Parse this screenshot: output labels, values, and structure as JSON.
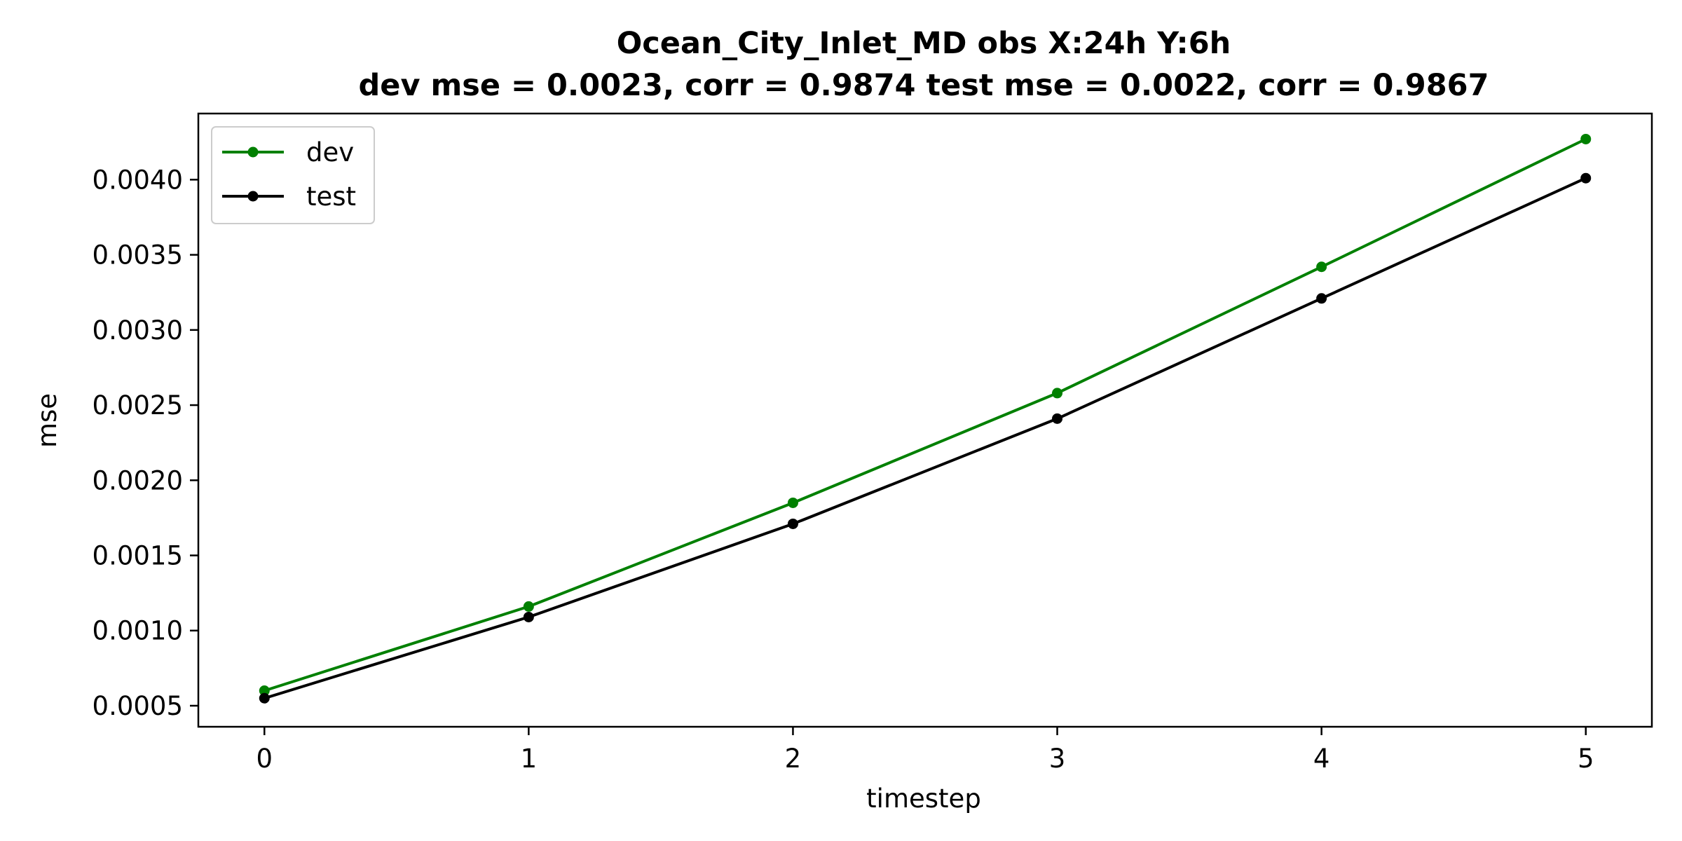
{
  "chart_data": {
    "type": "line",
    "title": "Ocean_City_Inlet_MD   obs   X:24h   Y:6h",
    "subtitle": "dev mse = 0.0023, corr = 0.9874   test mse = 0.0022, corr = 0.9867",
    "xlabel": "timestep",
    "ylabel": "mse",
    "x": [
      0,
      1,
      2,
      3,
      4,
      5
    ],
    "xlim": [
      -0.25,
      5.25
    ],
    "ylim": [
      0.00036,
      0.00444
    ],
    "xticks": [
      "0",
      "1",
      "2",
      "3",
      "4",
      "5"
    ],
    "yticks": [
      0.0005,
      0.001,
      0.0015,
      0.002,
      0.0025,
      0.003,
      0.0035,
      0.004
    ],
    "ytick_labels": [
      "0.0005",
      "0.0010",
      "0.0015",
      "0.0020",
      "0.0025",
      "0.0030",
      "0.0035",
      "0.0040"
    ],
    "grid": false,
    "legend_position": "top-left",
    "series": [
      {
        "name": "dev",
        "color": "#008000",
        "marker": "circle",
        "values": [
          0.0006,
          0.00116,
          0.00185,
          0.00258,
          0.00342,
          0.00427
        ]
      },
      {
        "name": "test",
        "color": "#000000",
        "marker": "circle",
        "values": [
          0.00055,
          0.00109,
          0.00171,
          0.00241,
          0.00321,
          0.00401
        ]
      }
    ]
  }
}
